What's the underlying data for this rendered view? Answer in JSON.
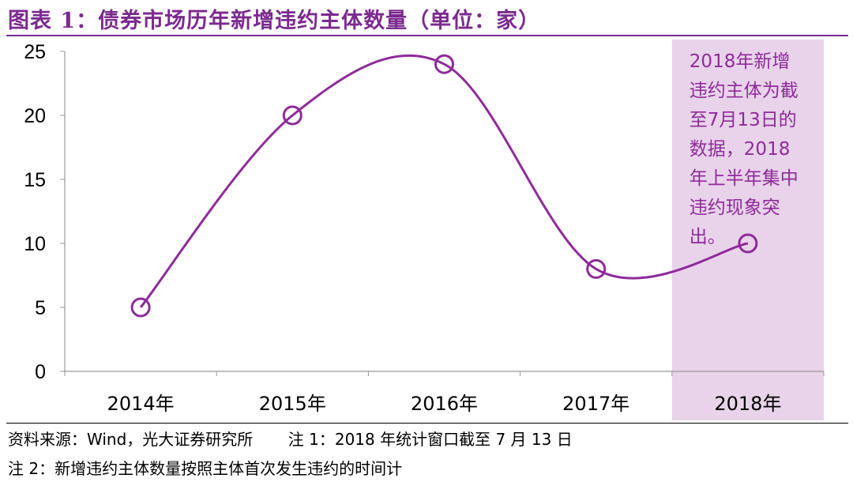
{
  "title": "图表 1：债券市场历年新增违约主体数量（单位：家）",
  "chart_data": {
    "type": "line",
    "categories": [
      "2014年",
      "2015年",
      "2016年",
      "2017年",
      "2018年"
    ],
    "values": [
      5,
      20,
      24,
      8,
      10
    ],
    "ylim": [
      0,
      25
    ],
    "yticks": [
      0,
      5,
      10,
      15,
      20,
      25
    ],
    "smooth": true,
    "marker": "open-circle",
    "grid": false,
    "colors": {
      "line": "#8e2b99",
      "highlight": "#e8d3ea",
      "text": "#8e2b99"
    },
    "highlight_category": "2018年",
    "annotation": "2018年新增违约主体为截至7月13日的数据，2018年上半年集中违约现象突出。"
  },
  "footer": {
    "line1": "资料来源：Wind，光大证券研究所       注 1：2018 年统计窗口截至 7 月 13 日",
    "line2": "注 2：新增违约主体数量按照主体首次发生违约的时间计"
  }
}
